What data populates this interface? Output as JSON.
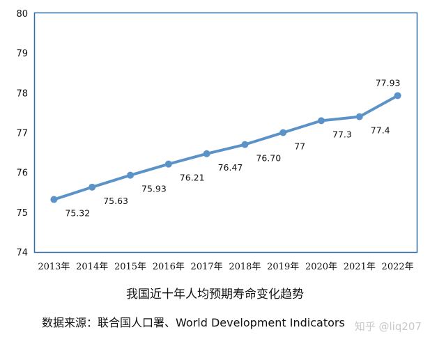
{
  "chart_data": {
    "type": "line",
    "title": "我国近十年人均预期寿命变化趋势",
    "categories": [
      "2013年",
      "2014年",
      "2015年",
      "2016年",
      "2017年",
      "2018年",
      "2019年",
      "2020年",
      "2021年",
      "2022年"
    ],
    "values": [
      75.32,
      75.63,
      75.93,
      76.21,
      76.47,
      76.7,
      77,
      77.3,
      77.4,
      77.93
    ],
    "data_labels": [
      "75.32",
      "75.63",
      "75.93",
      "76.21",
      "76.47",
      "76.70",
      "77",
      "77.3",
      "77.4",
      "77.93"
    ],
    "ylim": [
      74,
      80
    ],
    "yticks": [
      "74",
      "75",
      "76",
      "77",
      "78",
      "79",
      "80"
    ],
    "xlabel": "",
    "ylabel": "",
    "grid": false,
    "legend": "none",
    "series_color": "#5b93c8",
    "plot_border_color": "#2e6da8"
  },
  "source": {
    "prefix": "数据来源：联合国人口署、",
    "name": "World Development Indicators"
  },
  "watermark": "知乎 @liq207"
}
